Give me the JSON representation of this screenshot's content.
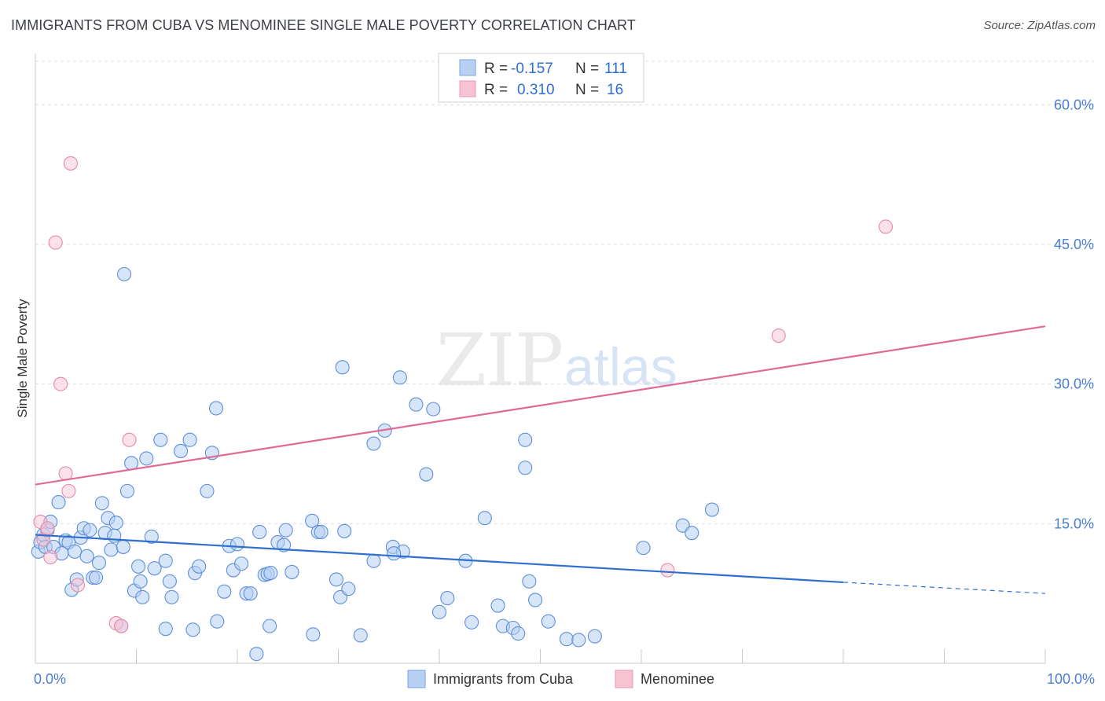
{
  "title": "IMMIGRANTS FROM CUBA VS MENOMINEE SINGLE MALE POVERTY CORRELATION CHART",
  "source": "Source: ZipAtlas.com",
  "watermark": {
    "zip": "ZIP",
    "atlas": "atlas"
  },
  "colors": {
    "blue": "#2f6fd0",
    "pink": "#e06a95",
    "blue_fill": "#b7d0f3",
    "pink_fill": "#f7c3d3",
    "grid": "#dddddd",
    "axis_text": "#4a7fd1"
  },
  "legend": {
    "r_label": "R =",
    "n_label": "N =",
    "rows": [
      {
        "r": "-0.157",
        "n": "111"
      },
      {
        "r": "0.310",
        "n": "16"
      }
    ]
  },
  "chart_data": {
    "type": "scatter",
    "title": "IMMIGRANTS FROM CUBA VS MENOMINEE SINGLE MALE POVERTY CORRELATION CHART",
    "xlabel": "",
    "ylabel": "Single Male Poverty",
    "xlim": [
      0,
      100
    ],
    "ylim": [
      0,
      64.5
    ],
    "x_tick_labels": [
      "0.0%",
      "100.0%"
    ],
    "y_ticks": [
      15,
      30,
      45,
      60
    ],
    "y_tick_labels": [
      "15.0%",
      "30.0%",
      "45.0%",
      "60.0%"
    ],
    "grid": "horizontal dashed",
    "legend_position": "top-center",
    "series": [
      {
        "name": "Immigrants from Cuba",
        "color": "#2f6fd0",
        "trend": {
          "x": [
            0,
            80
          ],
          "y": [
            13.8,
            8.7
          ],
          "dashed_extension_to_x": 100,
          "dashed_y_end": 7.5
        },
        "points": [
          [
            0.3,
            12.0
          ],
          [
            0.5,
            13.0
          ],
          [
            0.8,
            13.8
          ],
          [
            1.0,
            12.5
          ],
          [
            1.2,
            14.3
          ],
          [
            1.5,
            15.2
          ],
          [
            1.8,
            12.5
          ],
          [
            2.3,
            17.3
          ],
          [
            2.6,
            11.8
          ],
          [
            3.0,
            13.2
          ],
          [
            3.3,
            13.0
          ],
          [
            3.6,
            7.9
          ],
          [
            3.9,
            12.0
          ],
          [
            4.1,
            9.0
          ],
          [
            4.5,
            13.5
          ],
          [
            4.8,
            14.5
          ],
          [
            5.1,
            11.5
          ],
          [
            5.4,
            14.3
          ],
          [
            5.7,
            9.2
          ],
          [
            6.0,
            9.2
          ],
          [
            6.3,
            10.8
          ],
          [
            6.6,
            17.2
          ],
          [
            6.9,
            14.0
          ],
          [
            7.2,
            15.6
          ],
          [
            7.5,
            12.2
          ],
          [
            7.8,
            13.7
          ],
          [
            8.0,
            15.1
          ],
          [
            8.5,
            4.0
          ],
          [
            8.7,
            12.5
          ],
          [
            9.1,
            18.5
          ],
          [
            9.5,
            21.5
          ],
          [
            9.8,
            7.8
          ],
          [
            10.2,
            10.4
          ],
          [
            10.4,
            8.8
          ],
          [
            10.6,
            7.1
          ],
          [
            11.0,
            22.0
          ],
          [
            11.5,
            13.6
          ],
          [
            11.8,
            10.2
          ],
          [
            12.4,
            24.0
          ],
          [
            12.9,
            11.0
          ],
          [
            13.3,
            8.8
          ],
          [
            13.5,
            7.1
          ],
          [
            14.4,
            22.8
          ],
          [
            15.3,
            24.0
          ],
          [
            15.8,
            9.7
          ],
          [
            16.2,
            10.4
          ],
          [
            17.0,
            18.5
          ],
          [
            17.5,
            22.6
          ],
          [
            17.9,
            27.4
          ],
          [
            18.7,
            7.7
          ],
          [
            19.2,
            12.6
          ],
          [
            19.6,
            10.0
          ],
          [
            20.0,
            12.8
          ],
          [
            20.4,
            10.7
          ],
          [
            20.9,
            7.5
          ],
          [
            21.3,
            7.5
          ],
          [
            22.2,
            14.1
          ],
          [
            22.7,
            9.5
          ],
          [
            23.0,
            9.6
          ],
          [
            23.3,
            9.7
          ],
          [
            24.0,
            13.0
          ],
          [
            24.6,
            12.7
          ],
          [
            27.4,
            15.3
          ],
          [
            28.0,
            14.1
          ],
          [
            28.3,
            14.1
          ],
          [
            29.8,
            9.0
          ],
          [
            30.2,
            7.1
          ],
          [
            30.6,
            14.2
          ],
          [
            31.0,
            8.0
          ],
          [
            32.2,
            3.0
          ],
          [
            33.5,
            23.6
          ],
          [
            34.6,
            25.0
          ],
          [
            35.4,
            12.5
          ],
          [
            36.4,
            12.0
          ],
          [
            37.7,
            27.8
          ],
          [
            38.7,
            20.3
          ],
          [
            39.4,
            27.3
          ],
          [
            40.0,
            5.5
          ],
          [
            40.8,
            7.0
          ],
          [
            43.2,
            4.4
          ],
          [
            44.5,
            15.6
          ],
          [
            46.3,
            4.0
          ],
          [
            47.3,
            3.8
          ],
          [
            47.8,
            3.2
          ],
          [
            48.9,
            8.8
          ],
          [
            48.5,
            24.0
          ],
          [
            48.5,
            21.0
          ],
          [
            30.4,
            31.8
          ],
          [
            36.1,
            30.7
          ],
          [
            15.6,
            3.6
          ],
          [
            12.9,
            3.7
          ],
          [
            18.0,
            4.5
          ],
          [
            21.9,
            1.0
          ],
          [
            23.2,
            4.0
          ],
          [
            27.5,
            3.1
          ],
          [
            35.5,
            11.8
          ],
          [
            42.6,
            11.0
          ],
          [
            45.8,
            6.2
          ],
          [
            49.5,
            6.8
          ],
          [
            50.8,
            4.5
          ],
          [
            52.6,
            2.6
          ],
          [
            53.8,
            2.5
          ],
          [
            55.4,
            2.9
          ],
          [
            60.2,
            12.4
          ],
          [
            64.1,
            14.8
          ],
          [
            65.0,
            14.0
          ],
          [
            67.0,
            16.5
          ],
          [
            8.8,
            41.8
          ],
          [
            33.5,
            11.0
          ],
          [
            24.8,
            14.3
          ],
          [
            25.4,
            9.8
          ]
        ]
      },
      {
        "name": "Menominee",
        "color": "#e06a95",
        "trend": {
          "x": [
            0,
            100
          ],
          "y": [
            19.2,
            36.2
          ]
        },
        "points": [
          [
            0.5,
            15.2
          ],
          [
            0.8,
            13.3
          ],
          [
            1.2,
            14.5
          ],
          [
            1.5,
            11.4
          ],
          [
            2.0,
            45.2
          ],
          [
            2.5,
            30.0
          ],
          [
            3.0,
            20.4
          ],
          [
            3.3,
            18.5
          ],
          [
            3.5,
            53.7
          ],
          [
            4.2,
            8.4
          ],
          [
            8.0,
            4.3
          ],
          [
            8.5,
            4.0
          ],
          [
            9.3,
            24.0
          ],
          [
            62.6,
            10.0
          ],
          [
            73.6,
            35.2
          ],
          [
            84.2,
            46.9
          ]
        ]
      }
    ]
  }
}
